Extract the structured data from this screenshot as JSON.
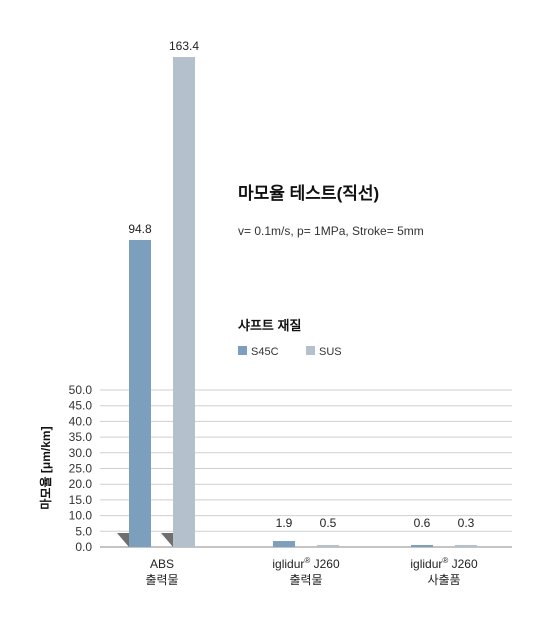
{
  "chart_data": {
    "type": "bar",
    "title": "마모율 테스트(직선)",
    "subtitle": "v= 0.1m/s, p= 1MPa, Stroke= 5mm",
    "ylabel": "마모율 [μm/km]",
    "xlabel": "",
    "ylim": [
      0,
      50
    ],
    "y_ticks": [
      "0.0",
      "5.0",
      "10.0",
      "15.0",
      "20.0",
      "25.0",
      "30.0",
      "35.0",
      "40.0",
      "45.0",
      "50.0"
    ],
    "y_tick_values": [
      0,
      5,
      10,
      15,
      20,
      25,
      30,
      35,
      40,
      45,
      50
    ],
    "grid": true,
    "axis_break": true,
    "categories": [
      {
        "line1": "ABS",
        "line2": "출력물",
        "sup": ""
      },
      {
        "line1": "iglidur",
        "sup": "®",
        "line1b": " J260",
        "line2": "출력물"
      },
      {
        "line1": "iglidur",
        "sup": "®",
        "line1b": " J260",
        "line2": "사출품"
      }
    ],
    "series": [
      {
        "name": "S45C",
        "values": [
          94.8,
          1.9,
          0.6
        ],
        "labels": [
          "94.8",
          "1.9",
          "0.6"
        ],
        "color": "#7c9fbd"
      },
      {
        "name": "SUS",
        "values": [
          163.4,
          0.5,
          0.3
        ],
        "labels": [
          "163.4",
          "0.5",
          "0.3"
        ],
        "color": "#b4c1cc"
      }
    ],
    "legend": {
      "title": "샤프트 재질",
      "position": "right-middle"
    },
    "break_marker_color": "#6f6f6f"
  }
}
